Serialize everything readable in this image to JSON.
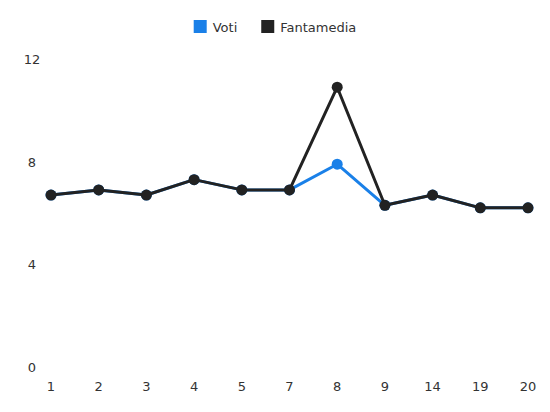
{
  "chart_data": {
    "type": "line",
    "categories": [
      "1",
      "2",
      "3",
      "4",
      "5",
      "7",
      "8",
      "9",
      "14",
      "19",
      "20"
    ],
    "series": [
      {
        "name": "Voti",
        "color": "#1a80e8",
        "marker": "circle",
        "values": [
          6.7,
          6.9,
          6.7,
          7.3,
          6.9,
          6.9,
          7.9,
          6.3,
          6.7,
          6.2,
          6.2
        ]
      },
      {
        "name": "Fantamedia",
        "color": "#222222",
        "marker": "circle",
        "values": [
          6.7,
          6.9,
          6.7,
          7.3,
          6.9,
          6.9,
          10.9,
          6.3,
          6.7,
          6.2,
          6.2
        ]
      }
    ],
    "ylim": [
      0,
      12
    ],
    "yticks": [
      0,
      4,
      8,
      12
    ],
    "grid": false,
    "legend": "top"
  }
}
